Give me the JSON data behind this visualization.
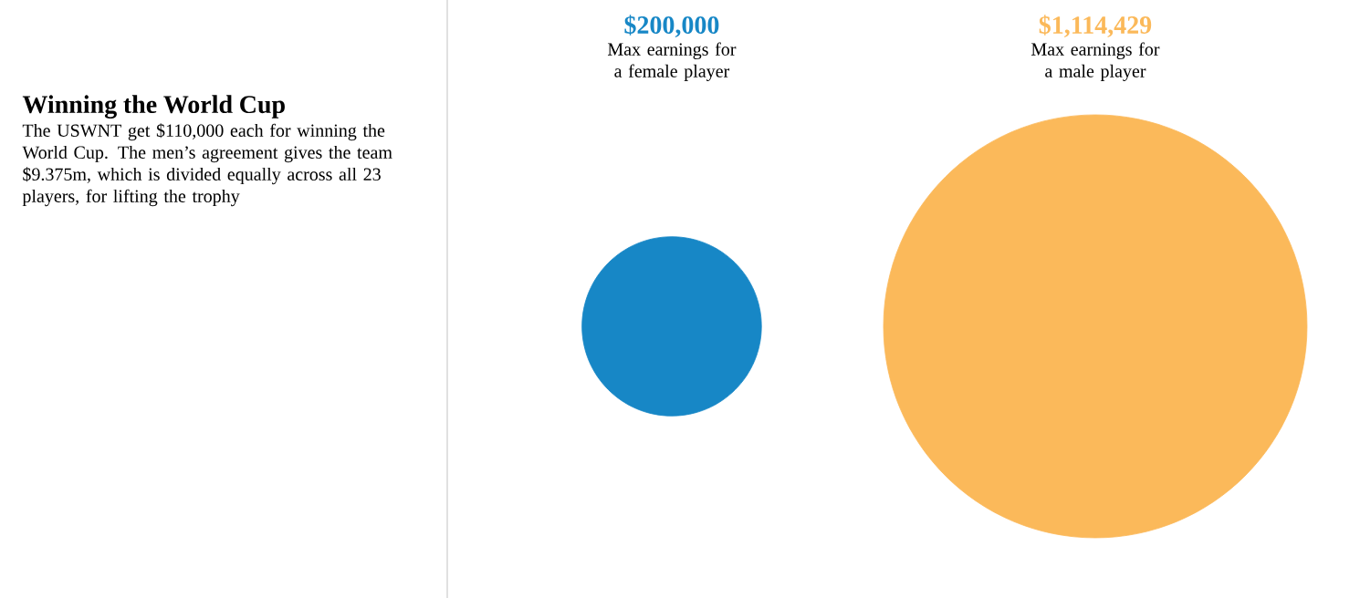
{
  "chart_data": {
    "type": "other",
    "title": "Winning the World Cup",
    "subtitle": "The USWNT get $110,000 each for winning the World Cup. The men’s agreement gives the team $9.375m, which is divided equally across all 23 players, for lifting the trophy",
    "categories": [
      "Max earnings for a female player",
      "Max earnings for a male player"
    ],
    "values": [
      200000,
      1114429
    ],
    "value_labels": [
      "$200,000",
      "$1,114,429"
    ],
    "colors": [
      "#1787c6",
      "#fbb95a"
    ]
  }
}
